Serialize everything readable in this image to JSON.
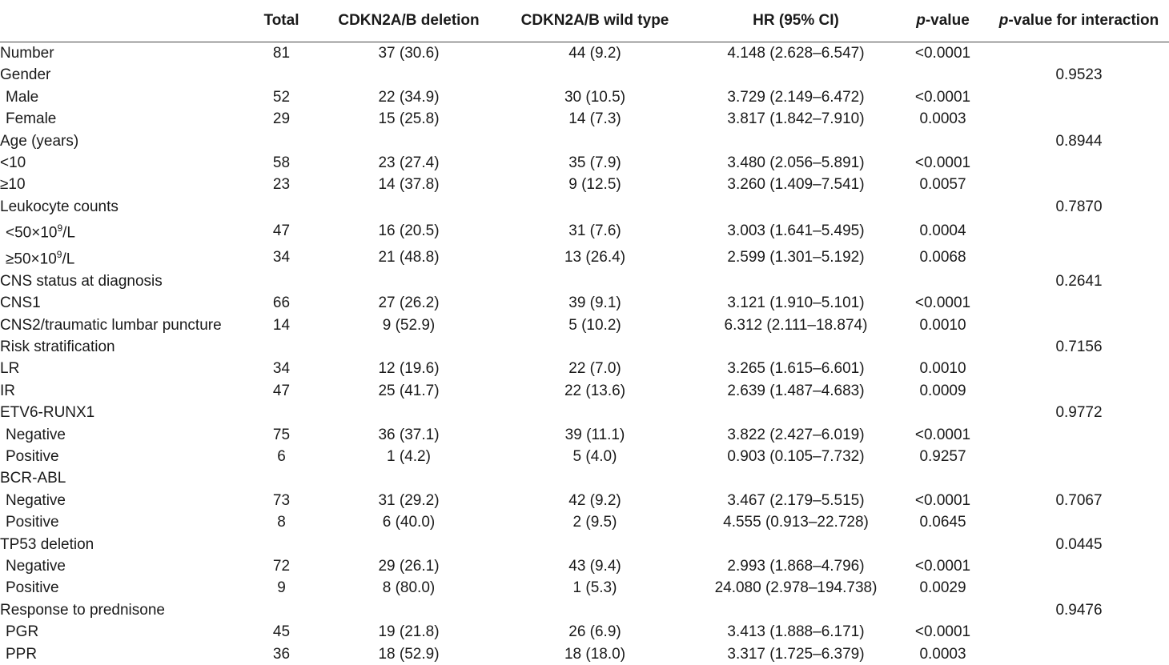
{
  "headers": {
    "label": "",
    "total": "Total",
    "deletion": "CDKN2A/B deletion",
    "wild": "CDKN2A/B wild type",
    "hr": "HR (95% CI)",
    "pvalue_italic": "p",
    "pvalue_rest": "-value",
    "pinter_italic": "p",
    "pinter_rest": "-value for interaction"
  },
  "rows": [
    {
      "label": "Number",
      "indent": false,
      "total": "81",
      "deletion": "37 (30.6)",
      "wild": "44 (9.2)",
      "hr": "4.148 (2.628–6.547)",
      "p": "<0.0001",
      "pinter": ""
    },
    {
      "label": "Gender",
      "indent": false,
      "total": "",
      "deletion": "",
      "wild": "",
      "hr": "",
      "p": "",
      "pinter": "0.9523"
    },
    {
      "label": "Male",
      "indent": true,
      "total": "52",
      "deletion": "22 (34.9)",
      "wild": "30 (10.5)",
      "hr": "3.729 (2.149–6.472)",
      "p": "<0.0001",
      "pinter": ""
    },
    {
      "label": "Female",
      "indent": true,
      "total": "29",
      "deletion": "15 (25.8)",
      "wild": "14 (7.3)",
      "hr": "3.817 (1.842–7.910)",
      "p": "0.0003",
      "pinter": ""
    },
    {
      "label": "Age (years)",
      "indent": false,
      "total": "",
      "deletion": "",
      "wild": "",
      "hr": "",
      "p": "",
      "pinter": "0.8944"
    },
    {
      "label": "<10",
      "indent": false,
      "total": "58",
      "deletion": "23 (27.4)",
      "wild": "35 (7.9)",
      "hr": "3.480 (2.056–5.891)",
      "p": "<0.0001",
      "pinter": ""
    },
    {
      "label": "≥10",
      "indent": false,
      "total": "23",
      "deletion": "14 (37.8)",
      "wild": "9 (12.5)",
      "hr": "3.260 (1.409–7.541)",
      "p": "0.0057",
      "pinter": ""
    },
    {
      "label": "Leukocyte counts",
      "indent": false,
      "total": "",
      "deletion": "",
      "wild": "",
      "hr": "",
      "p": "",
      "pinter": "0.7870"
    },
    {
      "label": "<50×10",
      "sup": "9",
      "suffix": "/L",
      "indent": true,
      "total": "47",
      "deletion": "16 (20.5)",
      "wild": "31 (7.6)",
      "hr": "3.003 (1.641–5.495)",
      "p": "0.0004",
      "pinter": ""
    },
    {
      "label": "≥50×10",
      "sup": "9",
      "suffix": "/L",
      "indent": true,
      "total": "34",
      "deletion": "21 (48.8)",
      "wild": "13 (26.4)",
      "hr": "2.599 (1.301–5.192)",
      "p": "0.0068",
      "pinter": ""
    },
    {
      "label": "CNS status at diagnosis",
      "indent": false,
      "total": "",
      "deletion": "",
      "wild": "",
      "hr": "",
      "p": "",
      "pinter": "0.2641"
    },
    {
      "label": "CNS1",
      "indent": false,
      "total": "66",
      "deletion": "27 (26.2)",
      "wild": "39 (9.1)",
      "hr": "3.121 (1.910–5.101)",
      "p": "<0.0001",
      "pinter": ""
    },
    {
      "label": "CNS2/traumatic lumbar puncture",
      "indent": false,
      "total": "14",
      "deletion": "9 (52.9)",
      "wild": "5 (10.2)",
      "hr": "6.312 (2.111–18.874)",
      "p": "0.0010",
      "pinter": ""
    },
    {
      "label": "Risk stratification",
      "indent": false,
      "total": "",
      "deletion": "",
      "wild": "",
      "hr": "",
      "p": "",
      "pinter": "0.7156"
    },
    {
      "label": "LR",
      "indent": false,
      "total": "34",
      "deletion": "12 (19.6)",
      "wild": "22 (7.0)",
      "hr": "3.265 (1.615–6.601)",
      "p": "0.0010",
      "pinter": ""
    },
    {
      "label": "IR",
      "indent": false,
      "total": "47",
      "deletion": "25 (41.7)",
      "wild": "22 (13.6)",
      "hr": "2.639 (1.487–4.683)",
      "p": "0.0009",
      "pinter": ""
    },
    {
      "label": "ETV6-RUNX1",
      "indent": false,
      "total": "",
      "deletion": "",
      "wild": "",
      "hr": "",
      "p": "",
      "pinter": "0.9772"
    },
    {
      "label": "Negative",
      "indent": true,
      "total": "75",
      "deletion": "36 (37.1)",
      "wild": "39 (11.1)",
      "hr": "3.822 (2.427–6.019)",
      "p": "<0.0001",
      "pinter": ""
    },
    {
      "label": "Positive",
      "indent": true,
      "total": "6",
      "deletion": "1 (4.2)",
      "wild": "5 (4.0)",
      "hr": "0.903 (0.105–7.732)",
      "p": "0.9257",
      "pinter": ""
    },
    {
      "label": "BCR-ABL",
      "indent": false,
      "total": "",
      "deletion": "",
      "wild": "",
      "hr": "",
      "p": "",
      "pinter": ""
    },
    {
      "label": "Negative",
      "indent": true,
      "total": "73",
      "deletion": "31 (29.2)",
      "wild": "42 (9.2)",
      "hr": "3.467 (2.179–5.515)",
      "p": "<0.0001",
      "pinter": "0.7067"
    },
    {
      "label": "Positive",
      "indent": true,
      "total": "8",
      "deletion": "6 (40.0)",
      "wild": "2 (9.5)",
      "hr": "4.555 (0.913–22.728)",
      "p": "0.0645",
      "pinter": ""
    },
    {
      "label": "TP53 deletion",
      "indent": false,
      "total": "",
      "deletion": "",
      "wild": "",
      "hr": "",
      "p": "",
      "pinter": "0.0445"
    },
    {
      "label": "Negative",
      "indent": true,
      "total": "72",
      "deletion": "29 (26.1)",
      "wild": "43 (9.4)",
      "hr": "2.993 (1.868–4.796)",
      "p": "<0.0001",
      "pinter": ""
    },
    {
      "label": "Positive",
      "indent": true,
      "total": "9",
      "deletion": "8 (80.0)",
      "wild": "1 (5.3)",
      "hr": "24.080 (2.978–194.738)",
      "p": "0.0029",
      "pinter": ""
    },
    {
      "label": "Response to prednisone",
      "indent": false,
      "total": "",
      "deletion": "",
      "wild": "",
      "hr": "",
      "p": "",
      "pinter": "0.9476"
    },
    {
      "label": "PGR",
      "indent": true,
      "total": "45",
      "deletion": "19 (21.8)",
      "wild": "26 (6.9)",
      "hr": "3.413 (1.888–6.171)",
      "p": "<0.0001",
      "pinter": ""
    },
    {
      "label": "PPR",
      "indent": true,
      "total": "36",
      "deletion": "18 (52.9)",
      "wild": "18 (18.0)",
      "hr": "3.317 (1.725–6.379)",
      "p": "0.0003",
      "pinter": ""
    }
  ]
}
